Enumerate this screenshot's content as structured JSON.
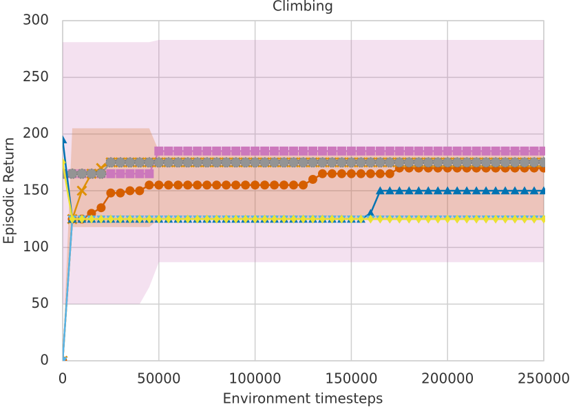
{
  "chart_data": {
    "type": "line",
    "title": "Climbing",
    "xlabel": "Environment timesteps",
    "ylabel": "Episodic Return",
    "xlim": [
      0,
      250000
    ],
    "ylim": [
      0,
      300
    ],
    "xticks": [
      0,
      50000,
      100000,
      150000,
      200000,
      250000
    ],
    "yticks": [
      0,
      50,
      100,
      150,
      200,
      250,
      300
    ],
    "grid": true,
    "x": [
      0,
      5000,
      10000,
      15000,
      20000,
      25000,
      30000,
      35000,
      40000,
      45000,
      50000,
      55000,
      60000,
      65000,
      70000,
      75000,
      80000,
      85000,
      90000,
      95000,
      100000,
      105000,
      110000,
      115000,
      120000,
      125000,
      130000,
      135000,
      140000,
      145000,
      150000,
      155000,
      160000,
      165000,
      170000,
      175000,
      180000,
      185000,
      190000,
      195000,
      200000,
      205000,
      210000,
      215000,
      220000,
      225000,
      230000,
      235000,
      240000,
      245000,
      250000
    ],
    "series": [
      {
        "color": "#cc78bc",
        "marker": "s",
        "values": [
          165,
          165,
          165,
          165,
          165,
          165,
          165,
          165,
          165,
          165,
          185,
          185,
          185,
          185,
          185,
          185,
          185,
          185,
          185,
          185,
          185,
          185,
          185,
          185,
          185,
          185,
          185,
          185,
          185,
          185,
          185,
          185,
          185,
          185,
          185,
          185,
          185,
          185,
          185,
          185,
          185,
          185,
          185,
          185,
          185,
          185,
          185,
          185,
          185,
          185,
          185
        ],
        "lower": [
          50,
          50,
          50,
          50,
          50,
          50,
          50,
          50,
          50,
          65,
          87,
          87,
          87,
          87,
          87,
          87,
          87,
          87,
          87,
          87,
          87,
          87,
          87,
          87,
          87,
          87,
          87,
          87,
          87,
          87,
          87,
          87,
          87,
          87,
          87,
          87,
          87,
          87,
          87,
          87,
          87,
          87,
          87,
          87,
          87,
          87,
          87,
          87,
          87,
          87,
          87
        ],
        "upper": [
          281,
          281,
          281,
          281,
          281,
          281,
          281,
          281,
          281,
          281,
          283,
          283,
          283,
          283,
          283,
          283,
          283,
          283,
          283,
          283,
          283,
          283,
          283,
          283,
          283,
          283,
          283,
          283,
          283,
          283,
          283,
          283,
          283,
          283,
          283,
          283,
          283,
          283,
          283,
          283,
          283,
          283,
          283,
          283,
          283,
          283,
          283,
          283,
          283,
          283,
          283
        ]
      },
      {
        "color": "#d55e00",
        "marker": "o",
        "values": [
          0,
          125,
          125,
          130,
          135,
          148,
          148,
          150,
          150,
          155,
          155,
          155,
          155,
          155,
          155,
          155,
          155,
          155,
          155,
          155,
          155,
          155,
          155,
          155,
          155,
          155,
          160,
          165,
          165,
          165,
          165,
          165,
          165,
          165,
          165,
          170,
          170,
          170,
          170,
          170,
          170,
          170,
          170,
          170,
          170,
          170,
          170,
          170,
          170,
          170,
          170
        ],
        "lower": [
          0,
          118,
          118,
          118,
          118,
          118,
          118,
          118,
          118,
          118,
          125,
          125,
          125,
          125,
          125,
          125,
          125,
          125,
          125,
          125,
          125,
          125,
          125,
          125,
          125,
          125,
          125,
          125,
          125,
          125,
          125,
          125,
          125,
          125,
          125,
          125,
          125,
          125,
          125,
          125,
          125,
          125,
          125,
          125,
          125,
          125,
          125,
          125,
          125,
          125,
          125
        ],
        "upper": [
          0,
          205,
          205,
          205,
          205,
          205,
          205,
          205,
          205,
          205,
          185,
          185,
          185,
          185,
          185,
          185,
          185,
          185,
          185,
          185,
          185,
          185,
          185,
          185,
          185,
          185,
          185,
          185,
          185,
          185,
          185,
          185,
          185,
          185,
          185,
          185,
          185,
          185,
          185,
          185,
          185,
          185,
          185,
          185,
          185,
          185,
          185,
          185,
          185,
          185,
          185
        ]
      },
      {
        "color": "#de8f05",
        "marker": "x",
        "values": [
          0,
          125,
          150,
          165,
          170,
          175,
          175,
          175,
          175,
          175,
          175,
          175,
          175,
          175,
          175,
          175,
          175,
          175,
          175,
          175,
          175,
          175,
          175,
          175,
          175,
          175,
          175,
          175,
          175,
          175,
          175,
          175,
          175,
          175,
          175,
          175,
          175,
          175,
          175,
          175,
          175,
          175,
          175,
          175,
          175,
          175,
          175,
          175,
          175,
          175,
          175
        ]
      },
      {
        "color": "#949494",
        "marker": "*",
        "values": [
          165,
          165,
          165,
          165,
          165,
          175,
          175,
          175,
          175,
          175,
          175,
          175,
          175,
          175,
          175,
          175,
          175,
          175,
          175,
          175,
          175,
          175,
          175,
          175,
          175,
          175,
          175,
          175,
          175,
          175,
          175,
          175,
          175,
          175,
          175,
          175,
          175,
          175,
          175,
          175,
          175,
          175,
          175,
          175,
          175,
          175,
          175,
          175,
          175,
          175,
          175
        ]
      },
      {
        "color": "#0173b2",
        "marker": "^",
        "values": [
          195,
          125,
          125,
          125,
          125,
          125,
          125,
          125,
          125,
          125,
          125,
          125,
          125,
          125,
          125,
          125,
          125,
          125,
          125,
          125,
          125,
          125,
          125,
          125,
          125,
          125,
          125,
          125,
          125,
          125,
          125,
          125,
          130,
          150,
          150,
          150,
          150,
          150,
          150,
          150,
          150,
          150,
          150,
          150,
          150,
          150,
          150,
          150,
          150,
          150,
          150
        ]
      },
      {
        "color": "#56b4e9",
        "marker": "v",
        "values": [
          0,
          125,
          125,
          125,
          125,
          125,
          125,
          125,
          125,
          125,
          125,
          125,
          125,
          125,
          125,
          125,
          125,
          125,
          125,
          125,
          125,
          125,
          125,
          125,
          125,
          125,
          125,
          125,
          125,
          125,
          125,
          125,
          125,
          125,
          125,
          125,
          125,
          125,
          125,
          125,
          125,
          125,
          125,
          125,
          125,
          125,
          125,
          125,
          125,
          125,
          125
        ]
      },
      {
        "color": "#ece133",
        "marker": "D",
        "values": [
          175,
          125,
          125,
          125,
          125,
          125,
          125,
          125,
          125,
          125,
          125,
          125,
          125,
          125,
          125,
          125,
          125,
          125,
          125,
          125,
          125,
          125,
          125,
          125,
          125,
          125,
          125,
          125,
          125,
          125,
          125,
          125,
          125,
          125,
          125,
          125,
          125,
          125,
          125,
          125,
          125,
          125,
          125,
          125,
          125,
          125,
          125,
          125,
          125,
          125,
          125
        ]
      }
    ]
  }
}
